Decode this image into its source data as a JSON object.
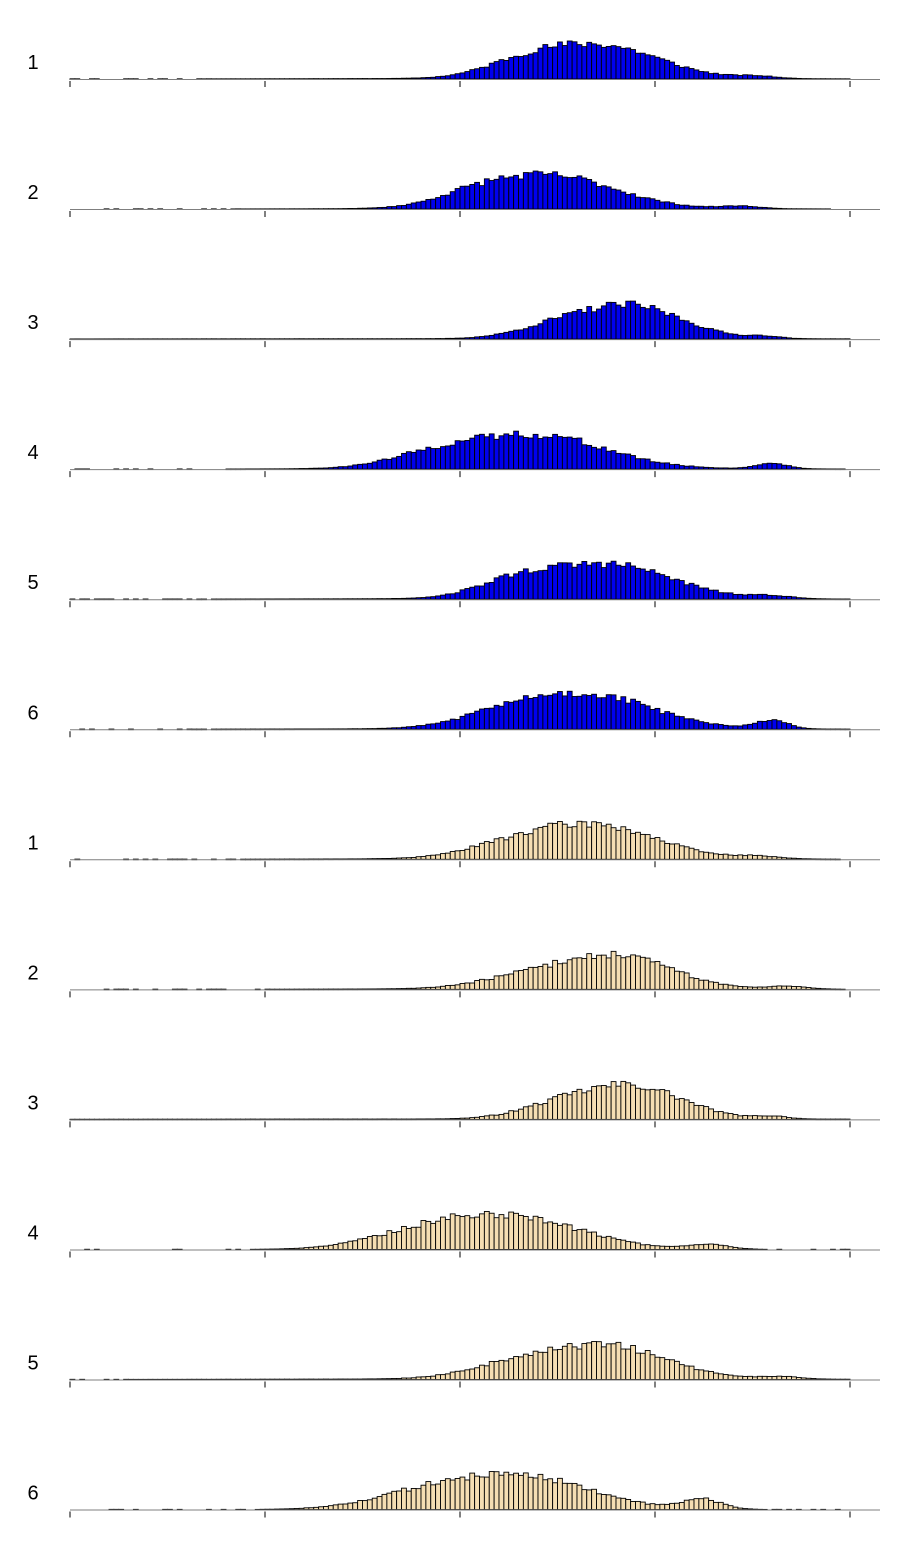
{
  "chart_data": {
    "type": "bar",
    "chart_kind": "histogram-small-multiples",
    "xlim": [
      0,
      1
    ],
    "ylim": [
      0,
      1
    ],
    "x_ticks": [
      0,
      0.25,
      0.5,
      0.75,
      1
    ],
    "tick_labels_shown": false,
    "n_bins": 160,
    "groups": [
      {
        "color": "#0000ee",
        "panels": [
          {
            "label": "1",
            "peaks": [
              [
                0.68,
                0.075,
                1.0
              ],
              [
                0.58,
                0.05,
                0.35
              ],
              [
                0.88,
                0.025,
                0.07
              ]
            ],
            "base": 0.03,
            "tail": 0.25,
            "seed": 11
          },
          {
            "label": "2",
            "peaks": [
              [
                0.62,
                0.08,
                1.0
              ],
              [
                0.52,
                0.05,
                0.3
              ],
              [
                0.86,
                0.025,
                0.08
              ]
            ],
            "base": 0.03,
            "tail": 0.22,
            "seed": 23
          },
          {
            "label": "3",
            "peaks": [
              [
                0.72,
                0.065,
                1.0
              ],
              [
                0.62,
                0.05,
                0.3
              ],
              [
                0.89,
                0.02,
                0.07
              ]
            ],
            "base": 0.02,
            "tail": 0.45,
            "seed": 37
          },
          {
            "label": "4",
            "peaks": [
              [
                0.6,
                0.085,
                0.95
              ],
              [
                0.47,
                0.06,
                0.35
              ],
              [
                0.9,
                0.02,
                0.16
              ]
            ],
            "base": 0.05,
            "tail": 0.2,
            "seed": 41
          },
          {
            "label": "5",
            "peaks": [
              [
                0.69,
                0.08,
                1.0
              ],
              [
                0.57,
                0.05,
                0.4
              ],
              [
                0.9,
                0.025,
                0.08
              ]
            ],
            "base": 0.03,
            "tail": 0.25,
            "seed": 53
          },
          {
            "label": "6",
            "peaks": [
              [
                0.67,
                0.08,
                1.0
              ],
              [
                0.56,
                0.06,
                0.4
              ],
              [
                0.9,
                0.02,
                0.27
              ]
            ],
            "base": 0.03,
            "tail": 0.25,
            "seed": 61
          }
        ]
      },
      {
        "color": "#f5deb3",
        "panels": [
          {
            "label": "1",
            "peaks": [
              [
                0.68,
                0.075,
                1.0
              ],
              [
                0.57,
                0.06,
                0.4
              ],
              [
                0.88,
                0.03,
                0.08
              ]
            ],
            "base": 0.04,
            "tail": 0.2,
            "seed": 71
          },
          {
            "label": "2",
            "peaks": [
              [
                0.7,
                0.07,
                1.0
              ],
              [
                0.58,
                0.06,
                0.3
              ],
              [
                0.92,
                0.025,
                0.09
              ]
            ],
            "base": 0.03,
            "tail": 0.2,
            "seed": 83
          },
          {
            "label": "3",
            "peaks": [
              [
                0.72,
                0.065,
                1.0
              ],
              [
                0.62,
                0.05,
                0.3
              ],
              [
                0.9,
                0.02,
                0.08
              ]
            ],
            "base": 0.02,
            "tail": 0.45,
            "seed": 97
          },
          {
            "label": "4",
            "peaks": [
              [
                0.57,
                0.085,
                1.0
              ],
              [
                0.45,
                0.07,
                0.45
              ],
              [
                0.82,
                0.025,
                0.15
              ]
            ],
            "base": 0.04,
            "tail": 0.12,
            "seed": 103
          },
          {
            "label": "5",
            "peaks": [
              [
                0.69,
                0.075,
                1.0
              ],
              [
                0.57,
                0.06,
                0.4
              ],
              [
                0.91,
                0.025,
                0.08
              ]
            ],
            "base": 0.03,
            "tail": 0.3,
            "seed": 109
          },
          {
            "label": "6",
            "peaks": [
              [
                0.58,
                0.085,
                1.0
              ],
              [
                0.45,
                0.07,
                0.4
              ],
              [
                0.81,
                0.025,
                0.3
              ]
            ],
            "base": 0.03,
            "tail": 0.12,
            "seed": 127
          }
        ]
      }
    ]
  }
}
